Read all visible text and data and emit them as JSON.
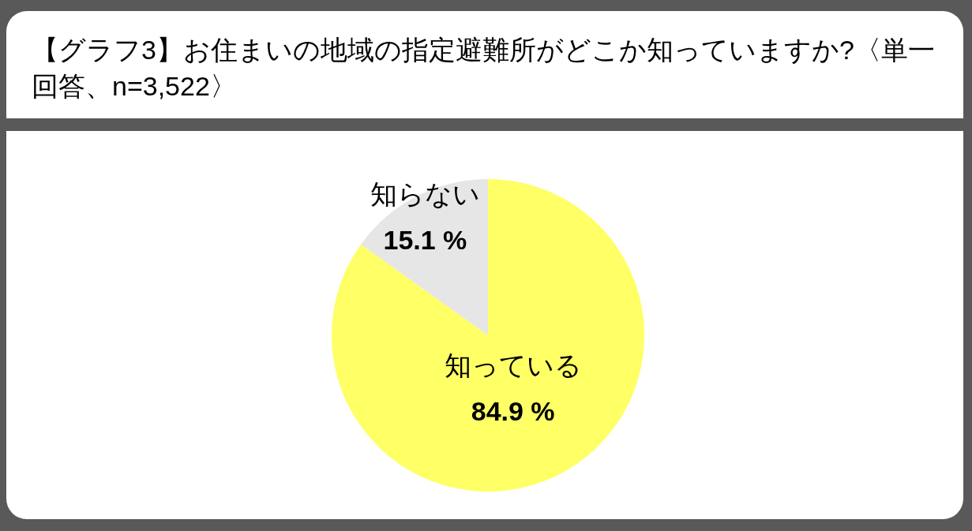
{
  "chart_data": {
    "type": "pie",
    "title": "【グラフ3】お住まいの地域の指定避難所がどこか知っていますか?〈単一回答、n=3,522〉",
    "categories": [
      "知っている",
      "知らない"
    ],
    "values": [
      84.9,
      15.1
    ],
    "colors": [
      "#ffff66",
      "#e6e6e6"
    ],
    "value_labels": [
      "84.9 %",
      "15.1 %"
    ],
    "legend": false
  }
}
